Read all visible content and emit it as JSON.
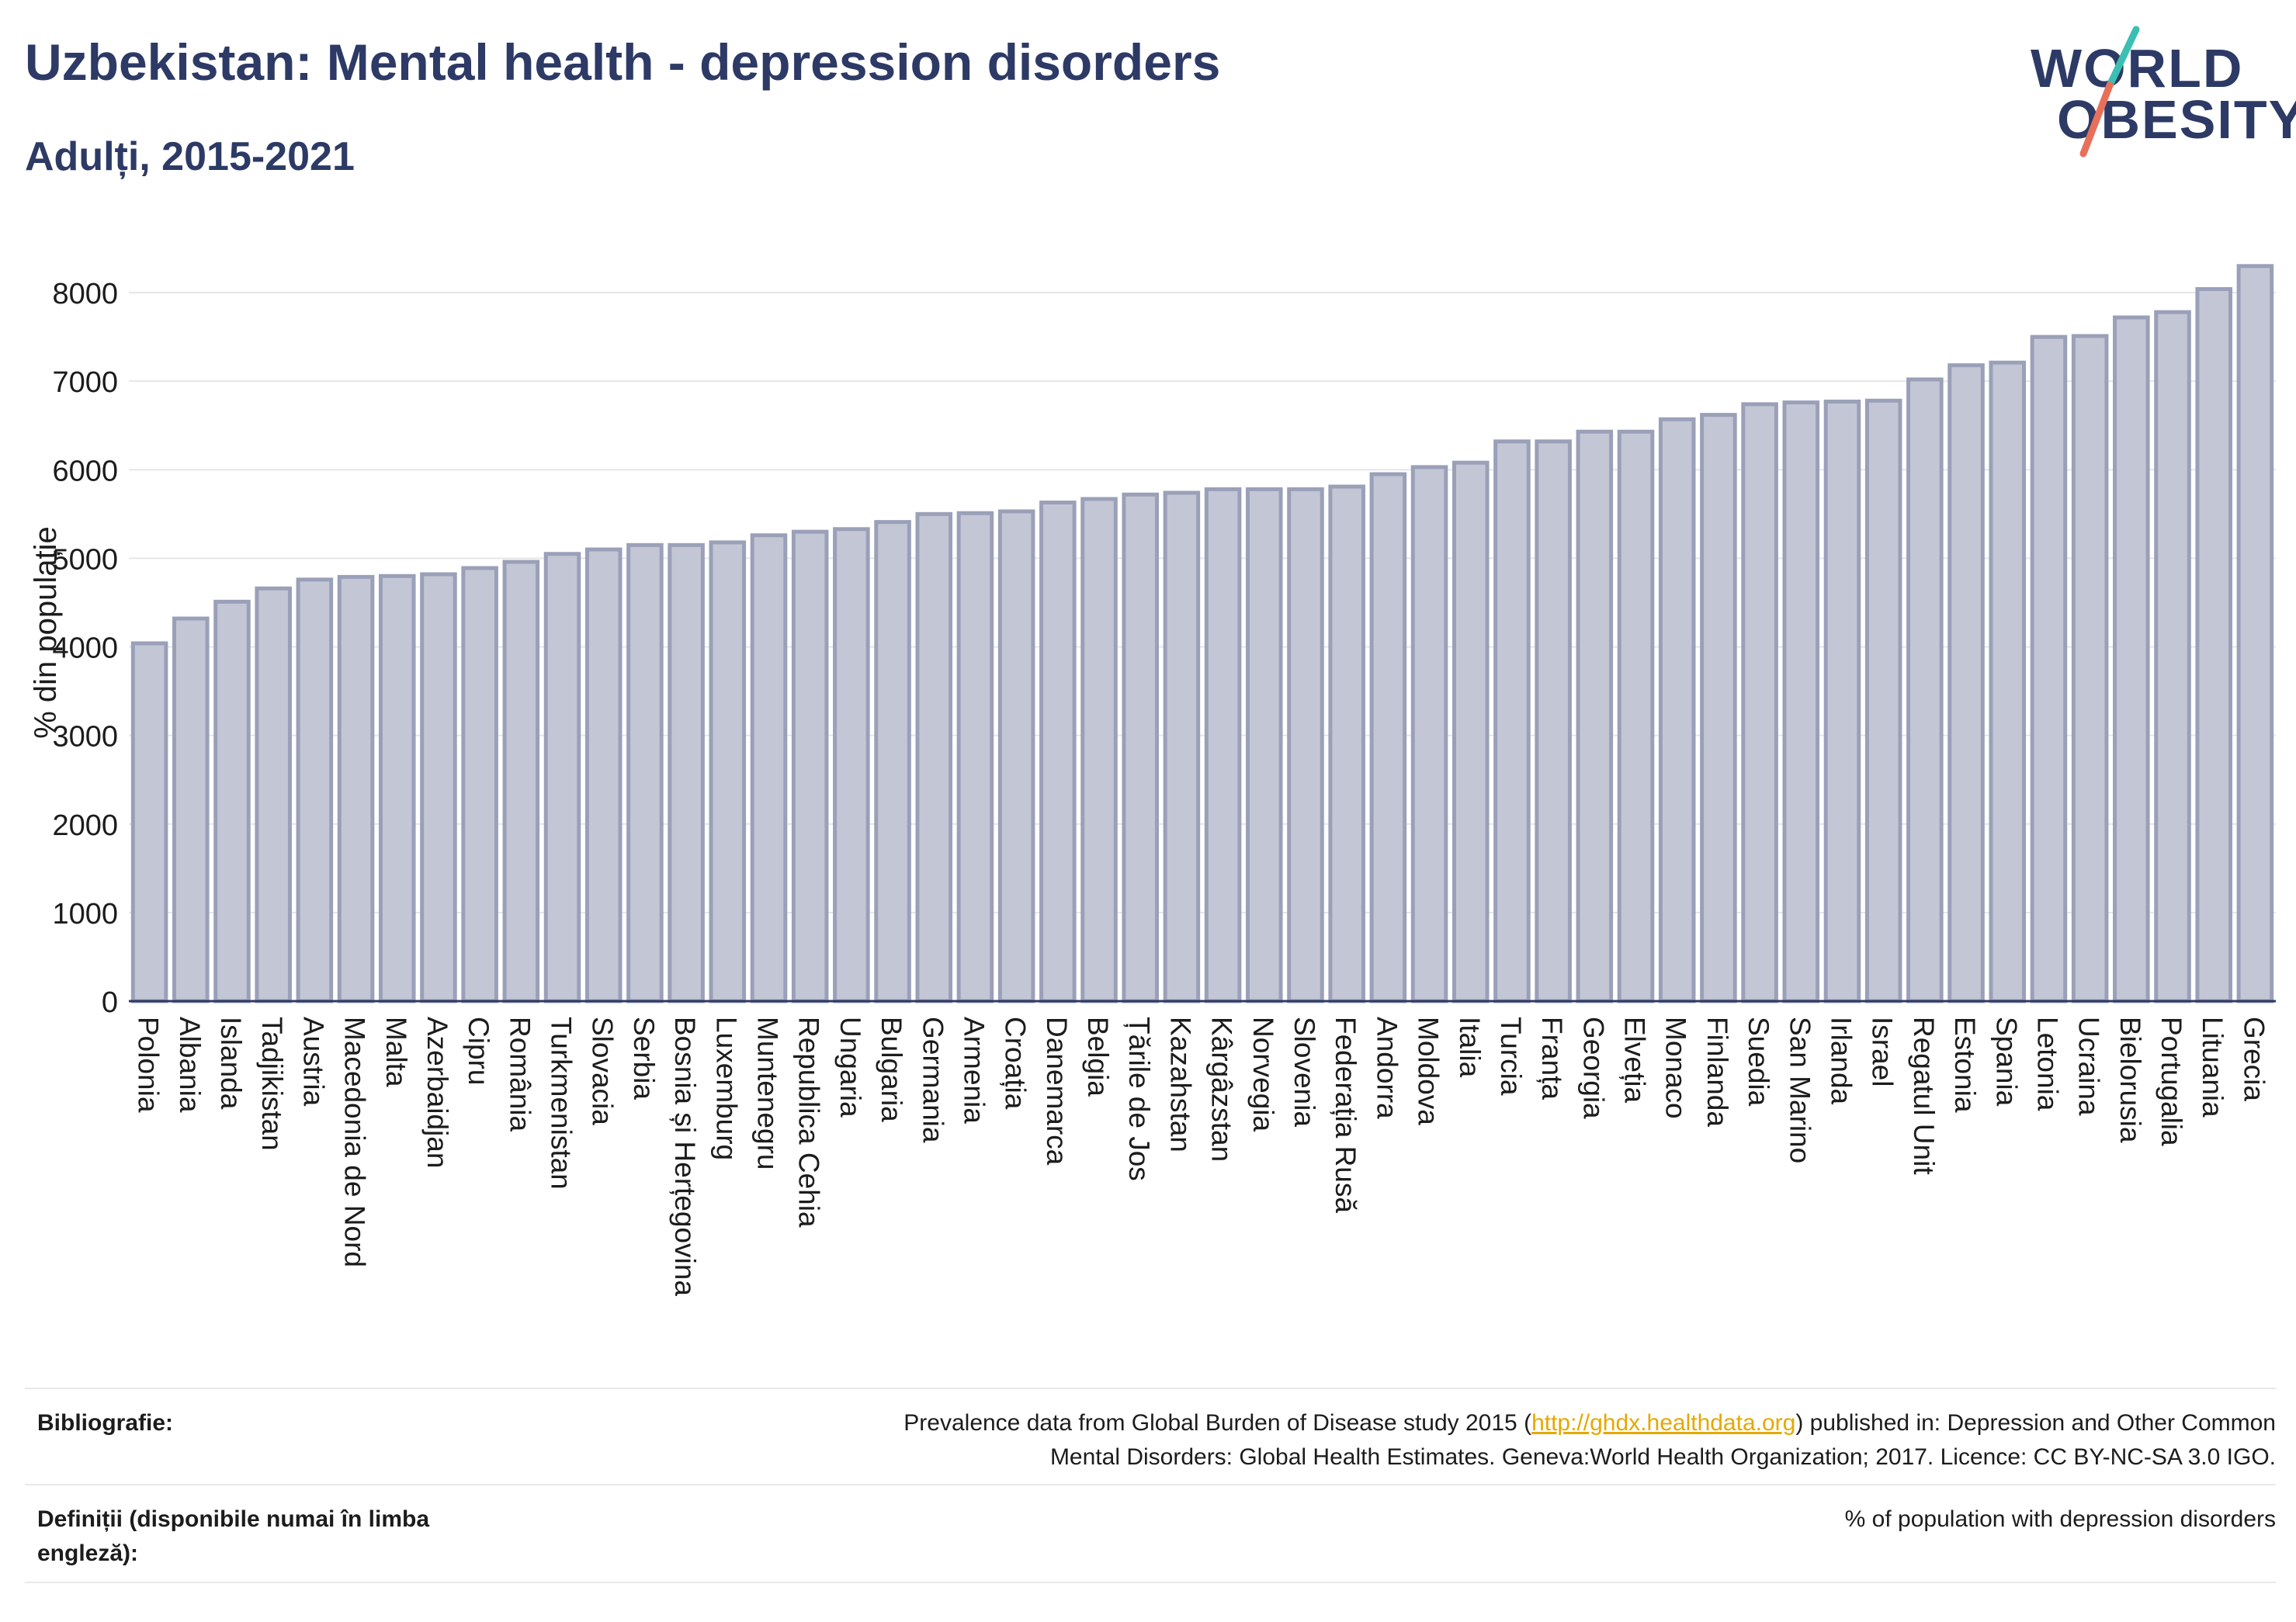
{
  "header": {
    "title": "Uzbekistan: Mental health - depression disorders",
    "subtitle": "Adulți, 2015-2021"
  },
  "logo": {
    "line1": "WORLD",
    "line2": "OBESITY"
  },
  "colors": {
    "bar_fill": "#c3c6d4",
    "bar_stroke": "#9aa0b8",
    "axis": "#2d3a66",
    "grid": "#e6e6ea",
    "accent_teal": "#3bbfb2",
    "accent_coral": "#e8705a"
  },
  "chart_data": {
    "type": "bar",
    "ylabel": "% din populație",
    "ylim": [
      0,
      8500
    ],
    "yticks": [
      0,
      1000,
      2000,
      3000,
      4000,
      5000,
      6000,
      7000,
      8000
    ],
    "grid": true,
    "categories": [
      "Polonia",
      "Albania",
      "Islanda",
      "Tadjikistan",
      "Austria",
      "Macedonia de Nord",
      "Malta",
      "Azerbaidjan",
      "Cipru",
      "România",
      "Turkmenistan",
      "Slovacia",
      "Serbia",
      "Bosnia și Herțegovina",
      "Luxemburg",
      "Muntenegru",
      "Republica Cehia",
      "Ungaria",
      "Bulgaria",
      "Germania",
      "Armenia",
      "Croația",
      "Danemarca",
      "Belgia",
      "Țările de Jos",
      "Kazahstan",
      "Kârgâzstan",
      "Norvegia",
      "Slovenia",
      "Federația Rusă",
      "Andorra",
      "Moldova",
      "Italia",
      "Turcia",
      "Franța",
      "Georgia",
      "Elveția",
      "Monaco",
      "Finlanda",
      "Suedia",
      "San Marino",
      "Irlanda",
      "Israel",
      "Regatul Unit",
      "Estonia",
      "Spania",
      "Letonia",
      "Ucraina",
      "Bielorusia",
      "Portugalia",
      "Lituania",
      "Grecia"
    ],
    "values": [
      4040,
      4320,
      4510,
      4660,
      4760,
      4790,
      4800,
      4820,
      4890,
      4960,
      5050,
      5100,
      5150,
      5150,
      5180,
      5260,
      5300,
      5330,
      5410,
      5500,
      5510,
      5530,
      5630,
      5670,
      5720,
      5740,
      5780,
      5780,
      5780,
      5810,
      5950,
      6030,
      6080,
      6320,
      6320,
      6430,
      6430,
      6570,
      6620,
      6740,
      6760,
      6770,
      6780,
      7020,
      7180,
      7210,
      7500,
      7510,
      7720,
      7780,
      8040,
      8300
    ]
  },
  "footer": {
    "bibliography_label": "Bibliografie:",
    "bibliography_pre": "Prevalence data from Global Burden of Disease study 2015 (",
    "bibliography_link": "http://ghdx.healthdata.org",
    "bibliography_post1": ") published in: Depression and Other Common",
    "bibliography_post2": "Mental Disorders: Global Health Estimates. Geneva:World Health Organization; 2017. Licence: CC BY-NC-SA 3.0 IGO.",
    "definitions_label_1": "Definiții (disponibile numai în limba",
    "definitions_label_2": "engleză):",
    "definitions_value": "% of population with depression disorders"
  }
}
